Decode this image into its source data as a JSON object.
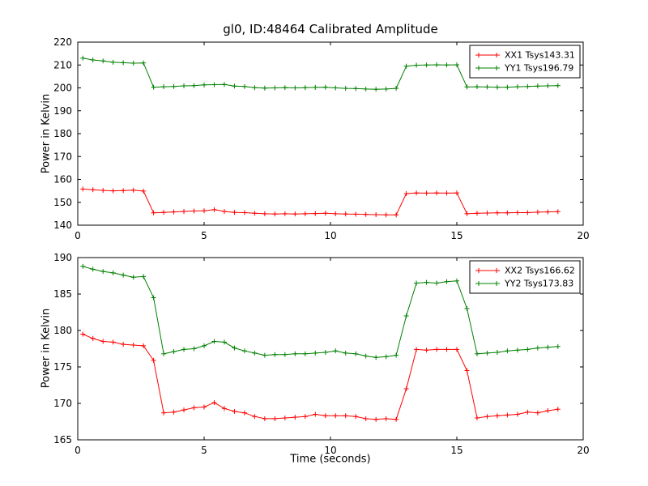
{
  "figure": {
    "title": "gl0, ID:48464 Calibrated Amplitude",
    "background": "#ffffff"
  },
  "chart_data": [
    {
      "type": "line",
      "subplot": "top",
      "title": "",
      "xlabel": "",
      "ylabel": "Power in Kelvin",
      "xlim": [
        0,
        20
      ],
      "ylim": [
        140,
        220
      ],
      "xticks": [
        0,
        5,
        10,
        15,
        20
      ],
      "yticks": [
        140,
        150,
        160,
        170,
        180,
        190,
        200,
        210,
        220
      ],
      "grid": false,
      "legend_position": "upper right",
      "x": [
        0.2,
        0.6,
        1.0,
        1.4,
        1.8,
        2.2,
        2.6,
        3.0,
        3.4,
        3.8,
        4.2,
        4.6,
        5.0,
        5.4,
        5.8,
        6.2,
        6.6,
        7.0,
        7.4,
        7.8,
        8.2,
        8.6,
        9.0,
        9.4,
        9.8,
        10.2,
        10.6,
        11.0,
        11.4,
        11.8,
        12.2,
        12.6,
        13.0,
        13.4,
        13.8,
        14.2,
        14.6,
        15.0,
        15.4,
        15.8,
        16.2,
        16.6,
        17.0,
        17.4,
        17.8,
        18.2,
        18.6,
        19.0
      ],
      "series": [
        {
          "name": "XX1 Tsys143.31",
          "color": "#ff0000",
          "marker": "+",
          "values": [
            155.8,
            155.5,
            155.2,
            155.0,
            155.1,
            155.3,
            154.9,
            145.4,
            145.6,
            145.8,
            146.0,
            146.2,
            146.3,
            146.8,
            146.0,
            145.6,
            145.5,
            145.2,
            145.0,
            144.9,
            145.0,
            144.9,
            145.0,
            145.1,
            145.2,
            145.0,
            144.9,
            144.8,
            144.7,
            144.6,
            144.5,
            144.5,
            153.8,
            154.1,
            154.0,
            154.1,
            154.0,
            154.1,
            145.0,
            145.2,
            145.3,
            145.4,
            145.4,
            145.5,
            145.5,
            145.7,
            145.8,
            145.9
          ]
        },
        {
          "name": "YY1 Tsys196.79",
          "color": "#008000",
          "marker": "+",
          "values": [
            213.0,
            212.2,
            211.8,
            211.2,
            211.0,
            210.8,
            210.9,
            200.3,
            200.5,
            200.6,
            200.9,
            201.0,
            201.3,
            201.4,
            201.5,
            200.8,
            200.6,
            200.1,
            199.9,
            200.0,
            200.1,
            200.0,
            200.1,
            200.2,
            200.3,
            200.0,
            199.8,
            199.7,
            199.5,
            199.4,
            199.5,
            199.8,
            209.5,
            209.9,
            210.0,
            210.1,
            210.0,
            210.1,
            200.4,
            200.5,
            200.4,
            200.3,
            200.3,
            200.5,
            200.6,
            200.8,
            200.9,
            201.0
          ]
        }
      ]
    },
    {
      "type": "line",
      "subplot": "bottom",
      "title": "",
      "xlabel": "Time (seconds)",
      "ylabel": "Power in Kelvin",
      "xlim": [
        0,
        20
      ],
      "ylim": [
        165,
        190
      ],
      "xticks": [
        0,
        5,
        10,
        15,
        20
      ],
      "yticks": [
        165,
        170,
        175,
        180,
        185,
        190
      ],
      "grid": false,
      "legend_position": "upper right",
      "x": [
        0.2,
        0.6,
        1.0,
        1.4,
        1.8,
        2.2,
        2.6,
        3.0,
        3.4,
        3.8,
        4.2,
        4.6,
        5.0,
        5.4,
        5.8,
        6.2,
        6.6,
        7.0,
        7.4,
        7.8,
        8.2,
        8.6,
        9.0,
        9.4,
        9.8,
        10.2,
        10.6,
        11.0,
        11.4,
        11.8,
        12.2,
        12.6,
        13.0,
        13.4,
        13.8,
        14.2,
        14.6,
        15.0,
        15.4,
        15.8,
        16.2,
        16.6,
        17.0,
        17.4,
        17.8,
        18.2,
        18.6,
        19.0
      ],
      "series": [
        {
          "name": "XX2 Tsys166.62",
          "color": "#ff0000",
          "marker": "+",
          "values": [
            179.5,
            178.9,
            178.5,
            178.4,
            178.1,
            178.0,
            177.9,
            175.9,
            168.7,
            168.8,
            169.1,
            169.4,
            169.5,
            170.1,
            169.3,
            168.9,
            168.7,
            168.2,
            167.9,
            167.9,
            168.0,
            168.1,
            168.2,
            168.5,
            168.3,
            168.3,
            168.3,
            168.2,
            167.9,
            167.8,
            167.9,
            167.8,
            172.0,
            177.4,
            177.3,
            177.4,
            177.4,
            177.4,
            174.5,
            168.0,
            168.2,
            168.3,
            168.4,
            168.5,
            168.8,
            168.7,
            169.0,
            169.2
          ]
        },
        {
          "name": "YY2 Tsys173.83",
          "color": "#008000",
          "marker": "+",
          "values": [
            188.8,
            188.4,
            188.1,
            187.9,
            187.6,
            187.3,
            187.4,
            184.5,
            176.8,
            177.1,
            177.4,
            177.5,
            177.9,
            178.5,
            178.4,
            177.6,
            177.2,
            176.9,
            176.6,
            176.7,
            176.7,
            176.8,
            176.8,
            176.9,
            177.0,
            177.2,
            176.9,
            176.8,
            176.5,
            176.3,
            176.4,
            176.6,
            182.0,
            186.5,
            186.6,
            186.5,
            186.7,
            186.8,
            183.0,
            176.8,
            176.9,
            177.0,
            177.2,
            177.3,
            177.4,
            177.6,
            177.7,
            177.8
          ]
        }
      ]
    }
  ]
}
